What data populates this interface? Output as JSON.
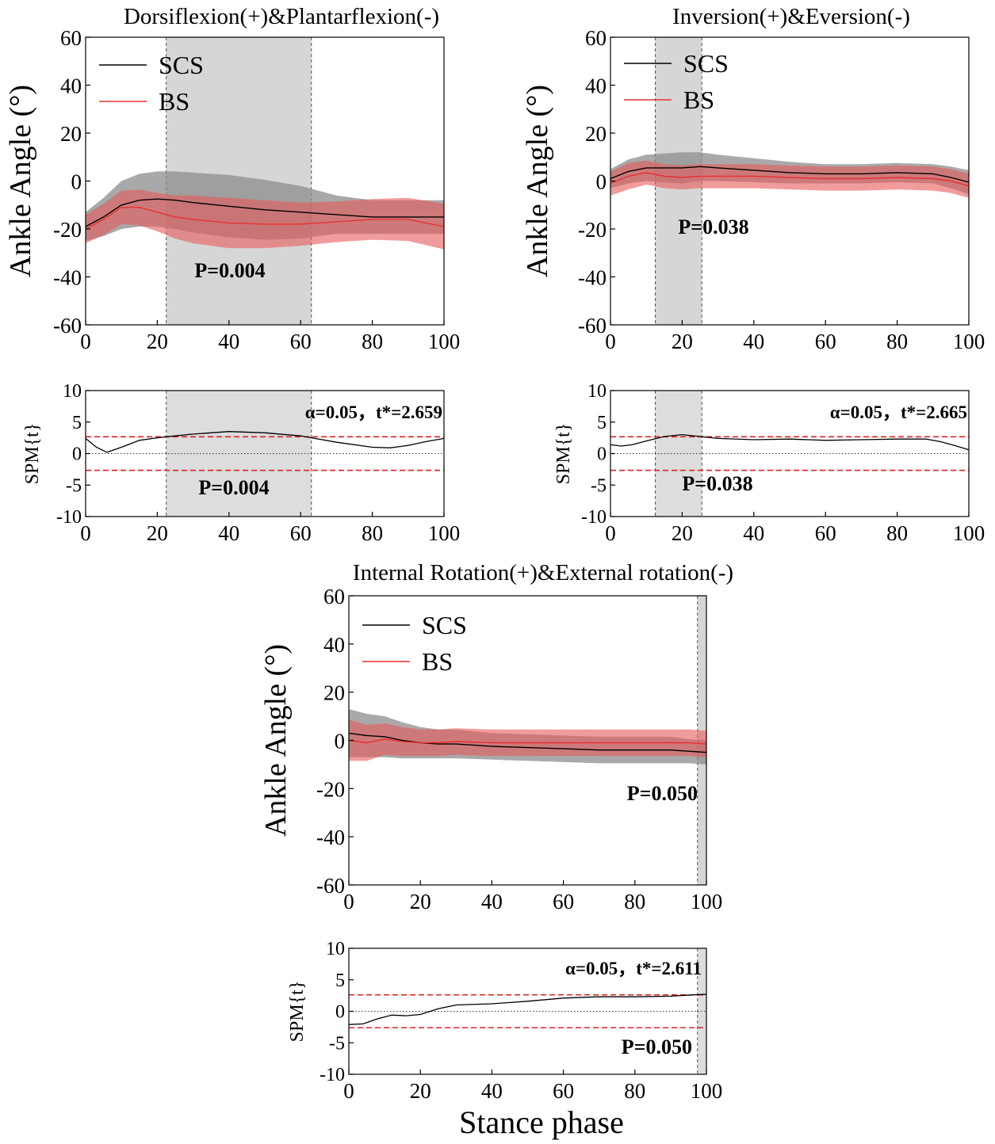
{
  "figure": {
    "xlabel": "Stance phase"
  },
  "chart_data": [
    {
      "type": "line",
      "id": "dp-angle",
      "title": "Dorsiflexion(+)&Plantarflexion(-)",
      "ylabel": "Ankle Angle (°)",
      "xlim": [
        0,
        100
      ],
      "ylim": [
        -60,
        60
      ],
      "xticks": [
        "0",
        "20",
        "40",
        "60",
        "80",
        "100"
      ],
      "yticks": [
        "-60",
        "-40",
        "-20",
        "0",
        "20",
        "40",
        "60"
      ],
      "legend": [
        "SCS",
        "BS"
      ],
      "significant_region": [
        22.5,
        63
      ],
      "p_label": "P=0.004",
      "x": [
        0,
        5,
        10,
        15,
        20,
        25,
        30,
        40,
        50,
        60,
        70,
        80,
        90,
        100
      ],
      "series": [
        {
          "name": "SCS",
          "color": "#000000",
          "band": "#8c8c8c",
          "mean": [
            -19,
            -15,
            -10,
            -8,
            -7.5,
            -8,
            -9,
            -10.5,
            -12,
            -13,
            -14,
            -15,
            -15,
            -15
          ],
          "sd": [
            6,
            8,
            10,
            11,
            11.5,
            12,
            12.5,
            13,
            12.5,
            11,
            8,
            7,
            7,
            7
          ]
        },
        {
          "name": "BS",
          "color": "#e83030",
          "band": "#e85a5a",
          "mean": [
            -20,
            -16,
            -11,
            -11,
            -13,
            -15,
            -16,
            -17.5,
            -18,
            -18,
            -17,
            -16,
            -16,
            -19
          ],
          "sd": [
            6,
            6.5,
            7,
            7.5,
            8,
            9,
            10,
            10.5,
            10,
            9,
            8.5,
            8.5,
            9,
            9.5
          ]
        }
      ]
    },
    {
      "type": "line",
      "id": "dp-spm",
      "ylabel": "SPM{t}",
      "xlim": [
        0,
        100
      ],
      "ylim": [
        -10,
        10
      ],
      "xticks": [
        "0",
        "20",
        "40",
        "60",
        "80",
        "100"
      ],
      "yticks": [
        "-10",
        "-5",
        "0",
        "5",
        "10"
      ],
      "threshold": 2.659,
      "threshold_label": "α=0.05，t*=2.659",
      "significant_region": [
        22.5,
        63
      ],
      "p_label": "P=0.004",
      "x": [
        0,
        3,
        6,
        10,
        15,
        20,
        25,
        30,
        40,
        50,
        60,
        70,
        80,
        85,
        90,
        95,
        100
      ],
      "values": [
        2.4,
        1.0,
        0.2,
        1.0,
        2.1,
        2.5,
        2.8,
        3.1,
        3.5,
        3.3,
        2.8,
        1.8,
        1.0,
        0.9,
        1.3,
        1.9,
        2.4
      ]
    },
    {
      "type": "line",
      "id": "ie-angle",
      "title": "Inversion(+)&Eversion(-)",
      "ylabel": "Ankle Angle (°)",
      "xlim": [
        0,
        100
      ],
      "ylim": [
        -60,
        60
      ],
      "xticks": [
        "0",
        "20",
        "40",
        "60",
        "80",
        "100"
      ],
      "yticks": [
        "-60",
        "-40",
        "-20",
        "0",
        "20",
        "40",
        "60"
      ],
      "legend": [
        "SCS",
        "BS"
      ],
      "significant_region": [
        12.5,
        25.5
      ],
      "p_label": "P=0.038",
      "x": [
        0,
        5,
        10,
        15,
        20,
        25,
        30,
        40,
        50,
        60,
        70,
        80,
        90,
        95,
        100
      ],
      "series": [
        {
          "name": "SCS",
          "color": "#000000",
          "band": "#8c8c8c",
          "mean": [
            1,
            4,
            5.5,
            5.5,
            5.5,
            6,
            5.5,
            4.5,
            3.5,
            3,
            3,
            3.5,
            3,
            1.5,
            -0.5
          ],
          "sd": [
            4,
            5,
            5.5,
            6,
            6.5,
            6,
            5.5,
            5,
            4.5,
            4,
            4,
            4,
            4,
            4.5,
            5
          ]
        },
        {
          "name": "BS",
          "color": "#e83030",
          "band": "#e85a5a",
          "mean": [
            -1,
            2,
            3.5,
            2,
            1.5,
            2,
            2,
            2,
            1.5,
            1,
            1,
            1.5,
            1,
            0,
            -2
          ],
          "sd": [
            5,
            5.5,
            5,
            5,
            5,
            5,
            5,
            5,
            5,
            5,
            5,
            5,
            5,
            5,
            5
          ]
        }
      ]
    },
    {
      "type": "line",
      "id": "ie-spm",
      "ylabel": "SPM{t}",
      "xlim": [
        0,
        100
      ],
      "ylim": [
        -10,
        10
      ],
      "xticks": [
        "0",
        "20",
        "40",
        "60",
        "80",
        "100"
      ],
      "yticks": [
        "-10",
        "-5",
        "0",
        "5",
        "10"
      ],
      "threshold": 2.665,
      "threshold_label": "α=0.05，t*=2.665",
      "significant_region": [
        12.5,
        25.5
      ],
      "p_label": "P=0.038",
      "x": [
        0,
        3,
        6,
        10,
        15,
        20,
        25,
        30,
        40,
        50,
        60,
        70,
        80,
        88,
        92,
        96,
        100
      ],
      "values": [
        1.4,
        1.2,
        1.4,
        2.0,
        2.7,
        3.0,
        2.7,
        2.4,
        2.2,
        2.3,
        2.1,
        2.2,
        2.3,
        2.3,
        1.9,
        1.3,
        0.6
      ]
    },
    {
      "type": "line",
      "id": "ier-angle",
      "title": "Internal Rotation(+)&External rotation(-)",
      "ylabel": "Ankle Angle (°)",
      "xlim": [
        0,
        100
      ],
      "ylim": [
        -60,
        60
      ],
      "xticks": [
        "0",
        "20",
        "40",
        "60",
        "80",
        "100"
      ],
      "yticks": [
        "-60",
        "-40",
        "-20",
        "0",
        "20",
        "40",
        "60"
      ],
      "legend": [
        "SCS",
        "BS"
      ],
      "significant_region": [
        97.5,
        100
      ],
      "p_label": "P=0.050",
      "x": [
        0,
        5,
        10,
        15,
        20,
        25,
        30,
        40,
        50,
        60,
        70,
        80,
        90,
        95,
        100
      ],
      "series": [
        {
          "name": "SCS",
          "color": "#000000",
          "band": "#8c8c8c",
          "mean": [
            3,
            2,
            1.5,
            0,
            -1,
            -1.5,
            -1.5,
            -2.5,
            -3,
            -3.5,
            -4,
            -4,
            -4,
            -4.5,
            -5
          ],
          "sd": [
            10,
            9,
            8.5,
            7.5,
            6.5,
            6,
            6,
            5.5,
            5.5,
            5.5,
            5.5,
            5.5,
            5.5,
            5,
            5
          ]
        },
        {
          "name": "BS",
          "color": "#e83030",
          "band": "#e85a5a",
          "mean": [
            0,
            -1,
            0.5,
            -0.5,
            -1,
            -1,
            -0.5,
            -1,
            -1,
            -1,
            -1,
            -1,
            -1,
            -1,
            -1.5
          ],
          "sd": [
            8.5,
            7.5,
            6.5,
            6,
            5.5,
            5.5,
            5.5,
            5.5,
            5.5,
            5.5,
            5.5,
            5.5,
            5.5,
            5.5,
            5.5
          ]
        }
      ]
    },
    {
      "type": "line",
      "id": "ier-spm",
      "ylabel": "SPM{t}",
      "xlim": [
        0,
        100
      ],
      "ylim": [
        -10,
        10
      ],
      "xticks": [
        "0",
        "20",
        "40",
        "60",
        "80",
        "100"
      ],
      "yticks": [
        "-10",
        "-5",
        "0",
        "5",
        "10"
      ],
      "threshold": 2.611,
      "threshold_label": "α=0.05，t*=2.611",
      "significant_region": [
        97.5,
        100
      ],
      "p_label": "P=0.050",
      "x": [
        0,
        4,
        8,
        12,
        16,
        20,
        25,
        30,
        40,
        50,
        60,
        70,
        80,
        90,
        96,
        100
      ],
      "values": [
        -2.1,
        -2.0,
        -1.2,
        -0.6,
        -0.7,
        -0.5,
        0.4,
        1.0,
        1.2,
        1.6,
        2.1,
        2.3,
        2.3,
        2.4,
        2.6,
        2.7
      ]
    }
  ]
}
